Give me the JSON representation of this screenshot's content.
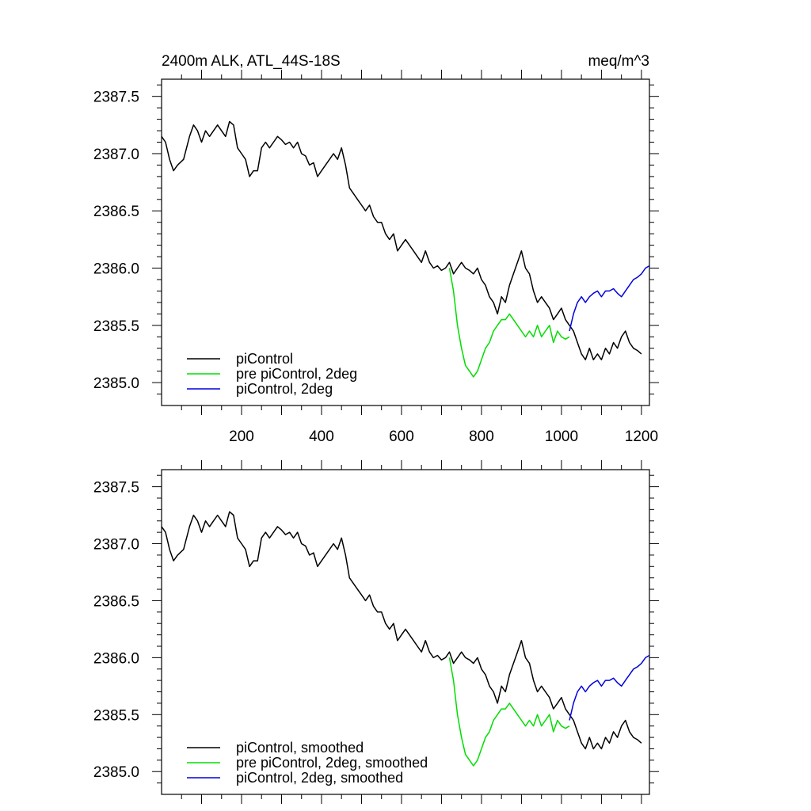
{
  "chart_data": [
    {
      "type": "line",
      "title": "2400m ALK, ATL_44S-18S",
      "units": "meq/m^3",
      "xlim": [
        0,
        1220
      ],
      "ylim": [
        2384.8,
        2387.65
      ],
      "x_tick_labels": [
        "200",
        "400",
        "600",
        "800",
        "1000",
        "1200"
      ],
      "y_tick_labels": [
        "2385.0",
        "2385.5",
        "2386.0",
        "2386.5",
        "2387.0",
        "2387.5"
      ],
      "legend_position": "bottom-left",
      "series": [
        {
          "name": "piControl",
          "color": "#000000",
          "x": [
            0,
            10,
            20,
            30,
            40,
            55,
            70,
            80,
            90,
            100,
            110,
            120,
            130,
            140,
            150,
            160,
            170,
            180,
            190,
            200,
            210,
            220,
            230,
            240,
            250,
            260,
            270,
            280,
            290,
            300,
            310,
            320,
            330,
            340,
            350,
            360,
            370,
            380,
            390,
            400,
            410,
            420,
            430,
            440,
            450,
            460,
            470,
            480,
            490,
            500,
            510,
            520,
            530,
            540,
            550,
            560,
            570,
            580,
            590,
            600,
            610,
            620,
            630,
            640,
            650,
            660,
            670,
            680,
            690,
            700,
            710,
            720,
            730,
            740,
            750,
            760,
            770,
            780,
            790,
            800,
            810,
            820,
            830,
            840,
            850,
            860,
            870,
            880,
            890,
            900,
            910,
            920,
            930,
            940,
            950,
            960,
            970,
            980,
            990,
            1000,
            1010,
            1020,
            1030,
            1040,
            1050,
            1060,
            1070,
            1080,
            1090,
            1100,
            1110,
            1120,
            1130,
            1140,
            1150,
            1160,
            1170,
            1180,
            1190,
            1200
          ],
          "y": [
            2387.15,
            2387.1,
            2386.95,
            2386.85,
            2386.9,
            2386.95,
            2387.15,
            2387.25,
            2387.2,
            2387.1,
            2387.2,
            2387.15,
            2387.2,
            2387.25,
            2387.2,
            2387.15,
            2387.28,
            2387.25,
            2387.05,
            2387.0,
            2386.95,
            2386.8,
            2386.85,
            2386.85,
            2387.05,
            2387.1,
            2387.05,
            2387.1,
            2387.15,
            2387.12,
            2387.08,
            2387.1,
            2387.05,
            2387.1,
            2387.0,
            2386.98,
            2386.9,
            2386.92,
            2386.8,
            2386.85,
            2386.9,
            2386.95,
            2387.0,
            2386.95,
            2387.05,
            2386.9,
            2386.7,
            2386.65,
            2386.6,
            2386.55,
            2386.5,
            2386.55,
            2386.45,
            2386.4,
            2386.4,
            2386.3,
            2386.25,
            2386.3,
            2386.15,
            2386.2,
            2386.25,
            2386.2,
            2386.15,
            2386.1,
            2386.05,
            2386.15,
            2386.05,
            2386.0,
            2386.02,
            2385.98,
            2386.0,
            2386.05,
            2385.95,
            2386.0,
            2386.05,
            2386.0,
            2385.98,
            2385.95,
            2386.0,
            2385.9,
            2385.85,
            2385.75,
            2385.7,
            2385.6,
            2385.75,
            2385.7,
            2385.85,
            2385.95,
            2386.05,
            2386.15,
            2386.0,
            2385.95,
            2385.8,
            2385.7,
            2385.75,
            2385.7,
            2385.65,
            2385.55,
            2385.6,
            2385.65,
            2385.55,
            2385.5,
            2385.45,
            2385.35,
            2385.25,
            2385.2,
            2385.3,
            2385.2,
            2385.25,
            2385.2,
            2385.3,
            2385.25,
            2385.35,
            2385.3,
            2385.4,
            2385.45,
            2385.35,
            2385.3,
            2385.28,
            2385.25
          ]
        },
        {
          "name": "pre piControl, 2deg",
          "color": "#00dd00",
          "x": [
            720,
            730,
            740,
            750,
            760,
            770,
            780,
            790,
            800,
            810,
            820,
            830,
            840,
            850,
            860,
            870,
            880,
            890,
            900,
            910,
            920,
            930,
            940,
            950,
            960,
            970,
            980,
            990,
            1000,
            1010,
            1020
          ],
          "y": [
            2386.0,
            2385.8,
            2385.5,
            2385.3,
            2385.15,
            2385.1,
            2385.05,
            2385.1,
            2385.2,
            2385.3,
            2385.35,
            2385.45,
            2385.5,
            2385.55,
            2385.55,
            2385.6,
            2385.55,
            2385.5,
            2385.45,
            2385.4,
            2385.45,
            2385.4,
            2385.5,
            2385.4,
            2385.45,
            2385.5,
            2385.35,
            2385.45,
            2385.4,
            2385.38,
            2385.4
          ]
        },
        {
          "name": "piControl, 2deg",
          "color": "#0000dd",
          "x": [
            1020,
            1030,
            1040,
            1050,
            1060,
            1070,
            1080,
            1090,
            1100,
            1110,
            1120,
            1130,
            1140,
            1150,
            1160,
            1170,
            1180,
            1190,
            1200,
            1210,
            1220
          ],
          "y": [
            2385.45,
            2385.6,
            2385.7,
            2385.75,
            2385.7,
            2385.75,
            2385.78,
            2385.8,
            2385.75,
            2385.8,
            2385.8,
            2385.82,
            2385.78,
            2385.75,
            2385.8,
            2385.85,
            2385.9,
            2385.92,
            2385.95,
            2386.0,
            2386.02
          ]
        }
      ]
    },
    {
      "type": "line",
      "title": "",
      "xlim": [
        0,
        1220
      ],
      "ylim": [
        2384.8,
        2387.65
      ],
      "y_tick_labels": [
        "2385.0",
        "2385.5",
        "2386.0",
        "2386.5",
        "2387.0",
        "2387.5"
      ],
      "legend_position": "bottom-left",
      "series": [
        {
          "name": "piControl, smoothed",
          "color": "#000000",
          "x": [
            0,
            10,
            20,
            30,
            40,
            55,
            70,
            80,
            90,
            100,
            110,
            120,
            130,
            140,
            150,
            160,
            170,
            180,
            190,
            200,
            210,
            220,
            230,
            240,
            250,
            260,
            270,
            280,
            290,
            300,
            310,
            320,
            330,
            340,
            350,
            360,
            370,
            380,
            390,
            400,
            410,
            420,
            430,
            440,
            450,
            460,
            470,
            480,
            490,
            500,
            510,
            520,
            530,
            540,
            550,
            560,
            570,
            580,
            590,
            600,
            610,
            620,
            630,
            640,
            650,
            660,
            670,
            680,
            690,
            700,
            710,
            720,
            730,
            740,
            750,
            760,
            770,
            780,
            790,
            800,
            810,
            820,
            830,
            840,
            850,
            860,
            870,
            880,
            890,
            900,
            910,
            920,
            930,
            940,
            950,
            960,
            970,
            980,
            990,
            1000,
            1010,
            1020,
            1030,
            1040,
            1050,
            1060,
            1070,
            1080,
            1090,
            1100,
            1110,
            1120,
            1130,
            1140,
            1150,
            1160,
            1170,
            1180,
            1190,
            1200
          ],
          "y": [
            2387.15,
            2387.1,
            2386.95,
            2386.85,
            2386.9,
            2386.95,
            2387.15,
            2387.25,
            2387.2,
            2387.1,
            2387.2,
            2387.15,
            2387.2,
            2387.25,
            2387.2,
            2387.15,
            2387.28,
            2387.25,
            2387.05,
            2387.0,
            2386.95,
            2386.8,
            2386.85,
            2386.85,
            2387.05,
            2387.1,
            2387.05,
            2387.1,
            2387.15,
            2387.12,
            2387.08,
            2387.1,
            2387.05,
            2387.1,
            2387.0,
            2386.98,
            2386.9,
            2386.92,
            2386.8,
            2386.85,
            2386.9,
            2386.95,
            2387.0,
            2386.95,
            2387.05,
            2386.9,
            2386.7,
            2386.65,
            2386.6,
            2386.55,
            2386.5,
            2386.55,
            2386.45,
            2386.4,
            2386.4,
            2386.3,
            2386.25,
            2386.3,
            2386.15,
            2386.2,
            2386.25,
            2386.2,
            2386.15,
            2386.1,
            2386.05,
            2386.15,
            2386.05,
            2386.0,
            2386.02,
            2385.98,
            2386.0,
            2386.05,
            2385.95,
            2386.0,
            2386.05,
            2386.0,
            2385.98,
            2385.95,
            2386.0,
            2385.9,
            2385.85,
            2385.75,
            2385.7,
            2385.6,
            2385.75,
            2385.7,
            2385.85,
            2385.95,
            2386.05,
            2386.15,
            2386.0,
            2385.95,
            2385.8,
            2385.7,
            2385.75,
            2385.7,
            2385.65,
            2385.55,
            2385.6,
            2385.65,
            2385.55,
            2385.5,
            2385.45,
            2385.35,
            2385.25,
            2385.2,
            2385.3,
            2385.2,
            2385.25,
            2385.2,
            2385.3,
            2385.25,
            2385.35,
            2385.3,
            2385.4,
            2385.45,
            2385.35,
            2385.3,
            2385.28,
            2385.25
          ]
        },
        {
          "name": "pre piControl, 2deg, smoothed",
          "color": "#00dd00",
          "x": [
            720,
            730,
            740,
            750,
            760,
            770,
            780,
            790,
            800,
            810,
            820,
            830,
            840,
            850,
            860,
            870,
            880,
            890,
            900,
            910,
            920,
            930,
            940,
            950,
            960,
            970,
            980,
            990,
            1000,
            1010,
            1020
          ],
          "y": [
            2386.0,
            2385.8,
            2385.5,
            2385.3,
            2385.15,
            2385.1,
            2385.05,
            2385.1,
            2385.2,
            2385.3,
            2385.35,
            2385.45,
            2385.5,
            2385.55,
            2385.55,
            2385.6,
            2385.55,
            2385.5,
            2385.45,
            2385.4,
            2385.45,
            2385.4,
            2385.5,
            2385.4,
            2385.45,
            2385.5,
            2385.35,
            2385.45,
            2385.4,
            2385.38,
            2385.4
          ]
        },
        {
          "name": "piControl, 2deg, smoothed",
          "color": "#0000dd",
          "x": [
            1020,
            1030,
            1040,
            1050,
            1060,
            1070,
            1080,
            1090,
            1100,
            1110,
            1120,
            1130,
            1140,
            1150,
            1160,
            1170,
            1180,
            1190,
            1200,
            1210,
            1220
          ],
          "y": [
            2385.45,
            2385.6,
            2385.7,
            2385.75,
            2385.7,
            2385.75,
            2385.78,
            2385.8,
            2385.75,
            2385.8,
            2385.8,
            2385.82,
            2385.78,
            2385.75,
            2385.8,
            2385.85,
            2385.9,
            2385.92,
            2385.95,
            2386.0,
            2386.02
          ]
        }
      ]
    }
  ]
}
